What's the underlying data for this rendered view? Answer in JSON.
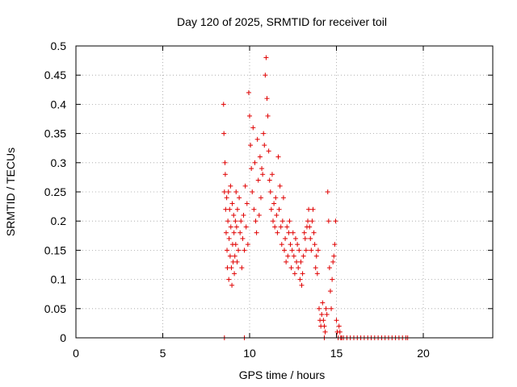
{
  "chart_data": {
    "type": "scatter",
    "title": "Day 120 of 2025, SRMTID for receiver toil",
    "xlabel": "GPS time / hours",
    "ylabel": "SRMTID / TECUs",
    "xlim": [
      0,
      24
    ],
    "ylim": [
      0,
      0.5
    ],
    "xticks": [
      0,
      5,
      10,
      15,
      20
    ],
    "xtick_labels": [
      "0",
      "5",
      "10",
      "15",
      "20"
    ],
    "yticks": [
      0,
      0.05,
      0.1,
      0.15,
      0.2,
      0.25,
      0.3,
      0.35,
      0.4,
      0.45,
      0.5
    ],
    "ytick_labels": [
      "0",
      "0.05",
      "0.1",
      "0.15",
      "0.2",
      "0.25",
      "0.3",
      "0.35",
      "0.4",
      "0.45",
      "0.5"
    ],
    "grid": true,
    "legend": "none",
    "marker": "+",
    "color": "#e00000",
    "series": [
      {
        "x": [
          8.5,
          8.52,
          8.55,
          8.58,
          8.6,
          8.62,
          8.65,
          8.68,
          8.7,
          8.72,
          8.75,
          8.78,
          8.8,
          8.82,
          8.85,
          8.88,
          8.9,
          8.92,
          8.95,
          8.98,
          9.0,
          9.02,
          9.05,
          9.08,
          9.1,
          9.12,
          9.15,
          9.18,
          9.2,
          9.22,
          9.25,
          9.28,
          9.3,
          9.35,
          9.4,
          9.45,
          9.5,
          9.55,
          9.6,
          9.65,
          9.7,
          9.75,
          9.8,
          9.85,
          9.9,
          9.95,
          10.0,
          10.05,
          10.1,
          10.15,
          10.2,
          10.25,
          10.3,
          10.35,
          10.4,
          10.45,
          10.5,
          10.55,
          10.6,
          10.65,
          10.7,
          10.75,
          10.8,
          10.85,
          10.9,
          10.95,
          11.0,
          11.05,
          11.1,
          11.15,
          11.2,
          11.25,
          11.3,
          11.35,
          11.4,
          11.45,
          11.5,
          11.55,
          11.6,
          11.65,
          11.7,
          11.75,
          11.8,
          11.85,
          11.9,
          11.95,
          12.0,
          12.05,
          12.1,
          12.15,
          12.2,
          12.25,
          12.3,
          12.35,
          12.4,
          12.45,
          12.5,
          12.55,
          12.6,
          12.65,
          12.7,
          12.75,
          12.8,
          12.85,
          12.9,
          12.95,
          13.0,
          13.05,
          13.1,
          13.15,
          13.2,
          13.25,
          13.3,
          13.35,
          13.4,
          13.45,
          13.5,
          13.55,
          13.6,
          13.65,
          13.7,
          13.75,
          13.8,
          13.85,
          13.9,
          13.95,
          14.0,
          14.05,
          14.1,
          14.15,
          14.2,
          14.25,
          14.3,
          14.35,
          14.4,
          14.45,
          14.5,
          14.55,
          14.6,
          14.65,
          14.7,
          14.75,
          14.8,
          14.85,
          14.9,
          14.95,
          15.0,
          15.05,
          15.1,
          15.15,
          15.2,
          15.25,
          15.3,
          15.4,
          15.6,
          15.8,
          16.0,
          16.2,
          16.4,
          16.6,
          16.8,
          17.0,
          17.2,
          17.4,
          17.6,
          17.8,
          18.0,
          18.2,
          18.4,
          18.6,
          18.8,
          19.0,
          19.1,
          8.55,
          9.7,
          14.3
        ],
        "y": [
          0.4,
          0.35,
          0.25,
          0.3,
          0.28,
          0.22,
          0.18,
          0.24,
          0.15,
          0.12,
          0.2,
          0.25,
          0.1,
          0.17,
          0.22,
          0.14,
          0.26,
          0.19,
          0.12,
          0.09,
          0.23,
          0.16,
          0.13,
          0.21,
          0.18,
          0.11,
          0.14,
          0.2,
          0.16,
          0.25,
          0.19,
          0.13,
          0.22,
          0.15,
          0.24,
          0.18,
          0.2,
          0.12,
          0.17,
          0.21,
          0.15,
          0.26,
          0.19,
          0.23,
          0.16,
          0.42,
          0.38,
          0.33,
          0.29,
          0.25,
          0.36,
          0.22,
          0.3,
          0.2,
          0.18,
          0.34,
          0.27,
          0.21,
          0.31,
          0.24,
          0.29,
          0.28,
          0.35,
          0.33,
          0.45,
          0.48,
          0.41,
          0.38,
          0.32,
          0.27,
          0.25,
          0.22,
          0.28,
          0.2,
          0.23,
          0.19,
          0.24,
          0.21,
          0.18,
          0.31,
          0.22,
          0.26,
          0.19,
          0.16,
          0.2,
          0.24,
          0.15,
          0.17,
          0.13,
          0.19,
          0.14,
          0.18,
          0.2,
          0.16,
          0.12,
          0.15,
          0.18,
          0.14,
          0.11,
          0.17,
          0.13,
          0.16,
          0.12,
          0.15,
          0.1,
          0.13,
          0.09,
          0.11,
          0.14,
          0.18,
          0.17,
          0.15,
          0.19,
          0.2,
          0.22,
          0.19,
          0.17,
          0.15,
          0.2,
          0.22,
          0.18,
          0.16,
          0.12,
          0.14,
          0.11,
          0.15,
          0.05,
          0.03,
          0.02,
          0.04,
          0.06,
          0.03,
          0.02,
          0.01,
          0.05,
          0.04,
          0.25,
          0.2,
          0.12,
          0.08,
          0.05,
          0.1,
          0.13,
          0.14,
          0.16,
          0.2,
          0.03,
          0.01,
          0.0,
          0.02,
          0.01,
          0.0,
          0.0,
          0.0,
          0.0,
          0.0,
          0.0,
          0.0,
          0.0,
          0.0,
          0.0,
          0.0,
          0.0,
          0.0,
          0.0,
          0.0,
          0.0,
          0.0,
          0.0,
          0.0,
          0.0,
          0.0,
          0.0,
          0.0,
          0.0,
          0.0
        ]
      }
    ]
  }
}
